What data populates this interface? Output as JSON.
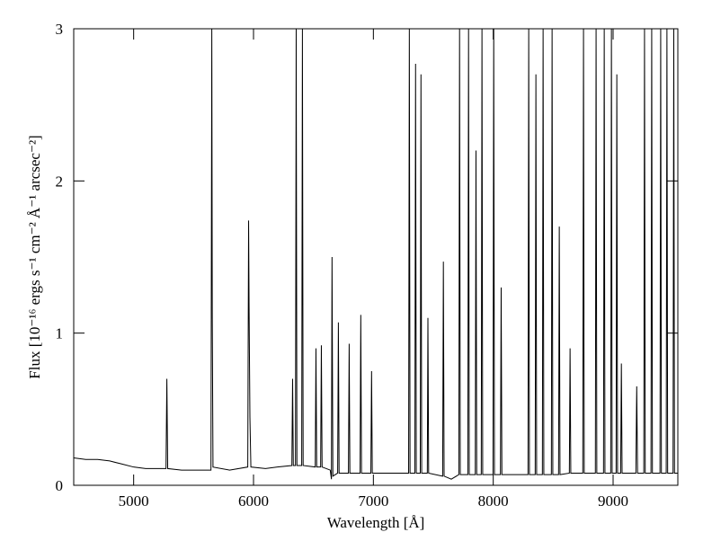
{
  "chart_data": {
    "type": "line",
    "x_label": "Wavelength [Å]",
    "y_label": "Flux [10⁻¹⁶ ergs s⁻¹ cm⁻² Å⁻¹ arcsec⁻²]",
    "xlim": [
      4500,
      9540
    ],
    "ylim": [
      0,
      3
    ],
    "xticks": [
      5000,
      6000,
      7000,
      8000,
      9000
    ],
    "yticks": [
      0,
      1,
      2,
      3
    ],
    "color": "#000000",
    "x": [
      4500,
      4600,
      4700,
      4800,
      4900,
      5000,
      5100,
      5270,
      5277,
      5284,
      5400,
      5500,
      5645,
      5652,
      5656,
      5662,
      5800,
      5952,
      5959,
      5963,
      5970,
      5978,
      6100,
      6200,
      6320,
      6326,
      6332,
      6350,
      6356,
      6362,
      6402,
      6408,
      6414,
      6515,
      6521,
      6527,
      6560,
      6566,
      6572,
      6640,
      6650,
      6655,
      6662,
      6702,
      6708,
      6714,
      6792,
      6798,
      6804,
      6889,
      6895,
      6901,
      6979,
      6985,
      6991,
      7100,
      7200,
      7294,
      7300,
      7306,
      7346,
      7352,
      7358,
      7391,
      7397,
      7403,
      7450,
      7455,
      7461,
      7578,
      7584,
      7590,
      7650,
      7713,
      7719,
      7725,
      7788,
      7794,
      7800,
      7850,
      7856,
      7862,
      7900,
      7906,
      7912,
      7998,
      8004,
      8010,
      8060,
      8066,
      8072,
      8200,
      8290,
      8296,
      8302,
      8350,
      8356,
      8362,
      8410,
      8416,
      8422,
      8485,
      8491,
      8497,
      8545,
      8551,
      8557,
      8635,
      8641,
      8647,
      8747,
      8753,
      8759,
      8852,
      8858,
      8864,
      8920,
      8926,
      8932,
      8980,
      8986,
      8992,
      9025,
      9031,
      9037,
      9063,
      9069,
      9075,
      9190,
      9197,
      9204,
      9256,
      9262,
      9268,
      9316,
      9322,
      9328,
      9391,
      9397,
      9403,
      9443,
      9449,
      9455,
      9500,
      9506,
      9512,
      9540
    ],
    "values": [
      0.18,
      0.17,
      0.17,
      0.16,
      0.14,
      0.12,
      0.11,
      0.11,
      0.7,
      0.11,
      0.1,
      0.1,
      0.1,
      3,
      1.1,
      0.12,
      0.1,
      0.12,
      1.74,
      1.17,
      0.45,
      0.12,
      0.11,
      0.12,
      0.13,
      0.7,
      0.13,
      0.13,
      3,
      0.13,
      0.13,
      3,
      0.13,
      0.12,
      0.9,
      0.12,
      0.12,
      0.92,
      0.12,
      0.1,
      0.04,
      1.5,
      0.06,
      0.08,
      1.07,
      0.08,
      0.08,
      0.93,
      0.08,
      0.08,
      1.12,
      0.08,
      0.08,
      0.75,
      0.08,
      0.08,
      0.08,
      0.08,
      3,
      0.08,
      0.08,
      2.77,
      0.08,
      0.08,
      2.7,
      0.08,
      0.08,
      1.1,
      0.08,
      0.06,
      1.47,
      0.06,
      0.04,
      0.07,
      3,
      0.07,
      0.07,
      3,
      0.07,
      0.07,
      2.2,
      0.07,
      0.07,
      3,
      0.07,
      0.07,
      3,
      0.07,
      0.07,
      1.3,
      0.07,
      0.07,
      0.07,
      3,
      0.07,
      0.07,
      2.7,
      0.07,
      0.07,
      3,
      0.07,
      0.07,
      3,
      0.07,
      0.07,
      1.7,
      0.07,
      0.08,
      0.9,
      0.08,
      0.08,
      3,
      0.08,
      0.08,
      3,
      0.08,
      0.08,
      3,
      0.08,
      0.08,
      3,
      0.08,
      0.08,
      2.7,
      0.08,
      0.08,
      0.8,
      0.08,
      0.08,
      0.65,
      0.08,
      0.08,
      3,
      0.08,
      0.08,
      3,
      0.08,
      0.08,
      3,
      0.08,
      0.08,
      3,
      0.08,
      0.08,
      3,
      0.08,
      0.08
    ]
  }
}
